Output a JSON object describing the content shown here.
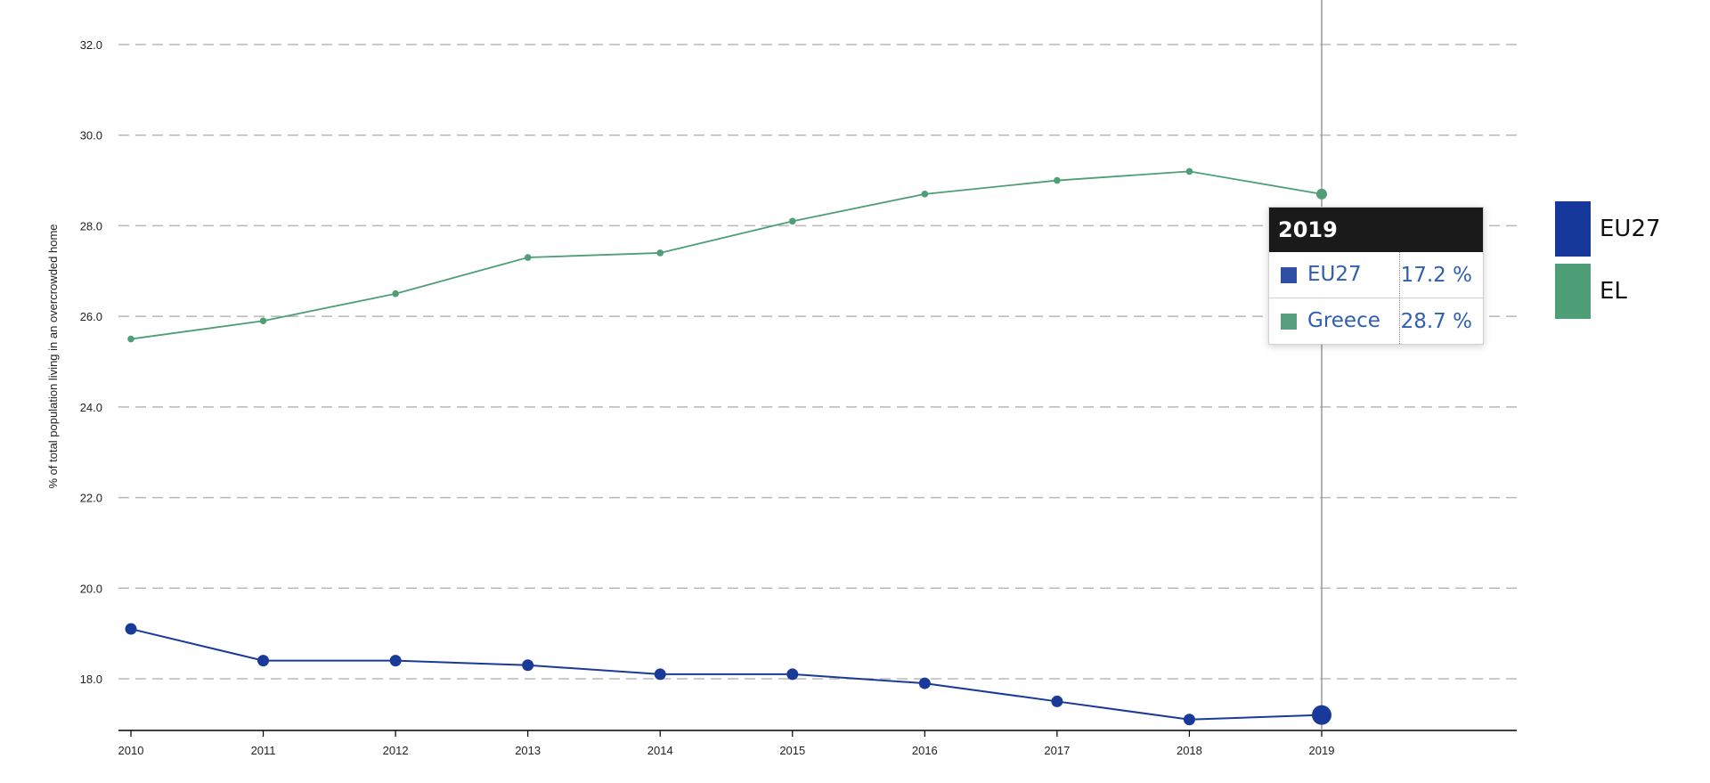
{
  "chart_data": {
    "type": "line",
    "ylabel": "% of total population living in an overcrowded home",
    "xlabel": "",
    "title": "",
    "ylim": [
      16.8,
      32.4
    ],
    "y_ticks": [
      "18.0",
      "20.0",
      "22.0",
      "24.0",
      "26.0",
      "28.0",
      "30.0",
      "32.0"
    ],
    "x": [
      "2010",
      "2011",
      "2012",
      "2013",
      "2014",
      "2015",
      "2016",
      "2017",
      "2018",
      "2019"
    ],
    "grid": true,
    "legend_position": "right",
    "series": [
      {
        "name": "EU27",
        "color": "#1a3a9a",
        "values": [
          19.1,
          18.4,
          18.4,
          18.3,
          18.1,
          18.1,
          17.9,
          17.5,
          17.1,
          17.2
        ]
      },
      {
        "name": "EL",
        "color": "#4e9e78",
        "values": [
          25.5,
          25.9,
          26.5,
          27.3,
          27.4,
          28.1,
          28.7,
          29.0,
          29.2,
          28.7
        ]
      }
    ],
    "highlight": "2019"
  },
  "tooltip": {
    "header": "2019",
    "rows": [
      {
        "name": "EU27",
        "value": "17.2 %",
        "color": "#2e4fa3"
      },
      {
        "name": "Greece",
        "value": "28.7 %",
        "color": "#5a9e80"
      }
    ]
  },
  "legend": {
    "items": [
      {
        "label": "EU27",
        "color": "#15389a"
      },
      {
        "label": "EL",
        "color": "#4e9e78"
      }
    ]
  }
}
